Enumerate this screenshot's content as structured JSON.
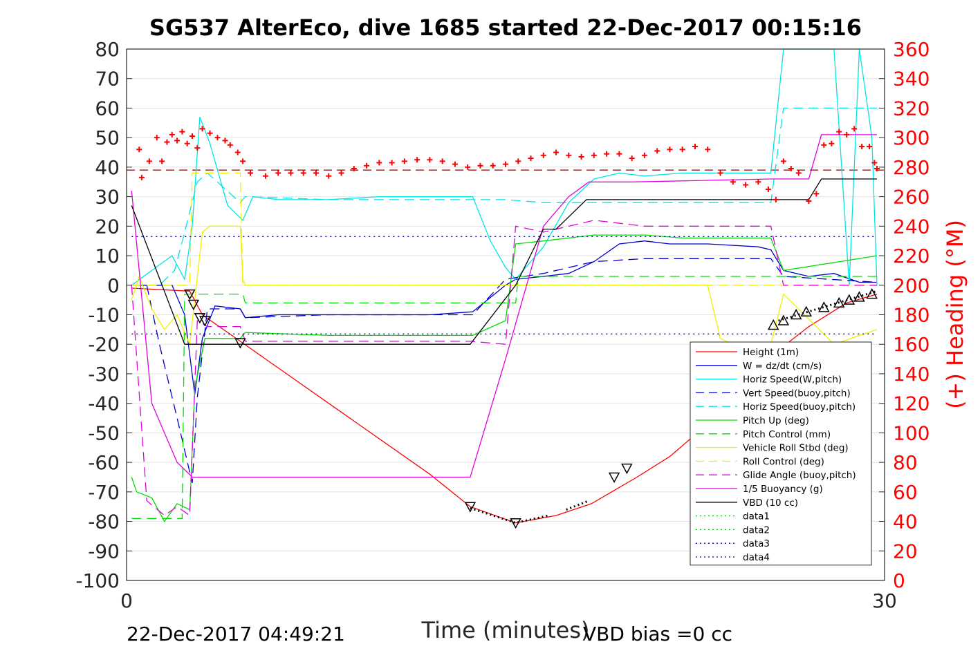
{
  "chart_data": {
    "type": "line",
    "title": "SG537 AlterEco, dive 1685 started 22-Dec-2017 00:15:16",
    "xlabel": "Time (minutes)",
    "ylabel_right": "(+) Heading (°M)",
    "xlim": [
      0,
      30
    ],
    "ylim": [
      -100,
      80
    ],
    "ylim_right": [
      0,
      360
    ],
    "grid": true,
    "legend_position": "lower-right",
    "x_ticks": [
      "0",
      "30"
    ],
    "y_ticks": [
      "80",
      "70",
      "60",
      "50",
      "40",
      "30",
      "20",
      "10",
      "0",
      "-10",
      "-20",
      "-30",
      "-40",
      "-50",
      "-60",
      "-70",
      "-80",
      "-90",
      "-100"
    ],
    "y_ticks_right": [
      "360",
      "340",
      "320",
      "300",
      "280",
      "260",
      "240",
      "220",
      "200",
      "180",
      "160",
      "140",
      "120",
      "100",
      "80",
      "60",
      "40",
      "20",
      "0"
    ],
    "footer_left": "22-Dec-2017 04:49:21",
    "footer_right": "VBD bias =0 cc",
    "colors": {
      "height": "#ff0000",
      "w": "#0000cc",
      "horiz_speed": "#00e5e5",
      "vert_speed_buoy": "#0000cc",
      "horiz_speed_buoy": "#00e5e5",
      "pitch_up": "#00dd00",
      "pitch_control": "#00dd00",
      "roll": "#f0f000",
      "roll_control": "#f0f000",
      "glide_angle": "#e000e0",
      "buoyancy": "#e000e0",
      "vbd": "#000000",
      "heading": "#ff0000",
      "data": "#00c000",
      "data_blue": "#0000aa"
    },
    "series": [
      {
        "name": "Height (1m)",
        "key": "height",
        "style": "solid",
        "x": [
          0.2,
          2.5,
          3.0,
          4.5,
          8,
          12,
          13.6,
          15.4,
          17,
          18.4,
          20.2,
          21.5,
          23,
          25.5,
          27.0,
          28.5,
          29.7
        ],
        "y": [
          -1,
          -2,
          -10,
          -19,
          -40,
          -64,
          -75,
          -80.5,
          -78,
          -74,
          -65,
          -58,
          -47,
          -24,
          -14,
          -6,
          -3
        ]
      },
      {
        "name": "W = dz/dt (cm/s)",
        "key": "w",
        "style": "solid",
        "x": [
          0.2,
          1.0,
          1.8,
          2.3,
          2.7,
          3.0,
          3.5,
          4.5,
          4.7,
          6,
          8,
          10,
          12,
          13.7,
          15,
          15.4,
          16.5,
          17.5,
          18.5,
          19.5,
          20.5,
          21.5,
          23,
          25,
          25.5,
          26,
          27,
          28,
          29,
          29.7
        ],
        "y": [
          0,
          0,
          0,
          -10,
          -37,
          -18,
          -7,
          -8,
          -11,
          -10,
          -10,
          -10,
          -10,
          -9,
          0,
          2,
          3,
          4,
          8,
          14,
          15,
          14,
          14,
          13,
          12,
          5,
          3,
          4,
          1,
          1
        ]
      },
      {
        "name": "Horiz Speed(W,pitch)",
        "key": "horiz_speed",
        "style": "solid",
        "x": [
          0.2,
          1.0,
          1.8,
          2.3,
          2.6,
          2.9,
          3.3,
          4.0,
          4.6,
          5.0,
          6,
          8,
          10,
          12,
          13.7,
          14.4,
          15.0,
          15.4,
          16.5,
          17.5,
          18.5,
          19.5,
          20.5,
          22,
          23,
          24.5,
          25.5,
          26.0,
          27.0,
          28.0,
          28.6,
          29.0,
          29.5,
          29.7
        ],
        "y": [
          0,
          5,
          10,
          2,
          20,
          57,
          48,
          27,
          22,
          30,
          29,
          29,
          30,
          30,
          30,
          15,
          6,
          2,
          13,
          28,
          36,
          38,
          37,
          38,
          38,
          38,
          38,
          80,
          80,
          80,
          0,
          80,
          50,
          0
        ]
      },
      {
        "name": "Vert Speed(buoy,pitch)",
        "key": "vert_speed_buoy",
        "style": "dash",
        "x": [
          0.2,
          0.8,
          1.3,
          2.0,
          2.6,
          2.8,
          3.2,
          4.5,
          4.7,
          8,
          12,
          13.7,
          15.0,
          16.5,
          18.5,
          20.5,
          22,
          25.5,
          26.0,
          29.7
        ],
        "y": [
          0,
          0,
          -20,
          -45,
          -67,
          -38,
          -8,
          -8,
          -11,
          -10,
          -10,
          -10,
          2,
          4,
          8,
          9,
          9,
          9,
          3,
          1
        ]
      },
      {
        "name": "Horiz Speed(buoy,pitch)",
        "key": "horiz_speed_buoy",
        "style": "dash",
        "x": [
          0.2,
          1.3,
          1.9,
          2.3,
          2.8,
          3.2,
          4.5,
          4.7,
          8,
          12,
          13.7,
          15,
          16.5,
          18,
          20,
          25.5,
          26.0,
          29.7
        ],
        "y": [
          0,
          0,
          5,
          18,
          35,
          38,
          28,
          30,
          29,
          29,
          29,
          29,
          28,
          28,
          28,
          28,
          60,
          60
        ]
      },
      {
        "name": "Pitch Up (deg)",
        "key": "pitch_up",
        "style": "solid",
        "x": [
          0.2,
          0.4,
          1.0,
          1.5,
          2.0,
          2.5,
          2.7,
          3.1,
          4.5,
          4.7,
          8,
          12,
          13.7,
          15.0,
          15.4,
          16.5,
          18.5,
          19.5,
          20.5,
          22,
          25.5,
          26.0,
          29.7
        ],
        "y": [
          -65,
          -70,
          -72,
          -80,
          -74,
          -76,
          -35,
          -18,
          -18,
          -16,
          -17,
          -17,
          -17,
          -12,
          14,
          15,
          17,
          17,
          17,
          16,
          16,
          5,
          10
        ]
      },
      {
        "name": "Pitch Control (mm)",
        "key": "pitch_control",
        "style": "dash",
        "x": [
          0.2,
          2.2,
          2.3,
          4.6,
          4.7,
          13.6,
          13.7,
          15.4,
          15.5,
          26.0,
          29.7
        ],
        "y": [
          -79,
          -79,
          -3,
          -3,
          -6,
          -6,
          -6,
          -6,
          3,
          3,
          3
        ]
      },
      {
        "name": "Vehicle Roll Stbd (deg)",
        "key": "roll",
        "style": "solid",
        "x": [
          0.2,
          0.5,
          1.0,
          1.5,
          2.0,
          2.5,
          3.0,
          3.3,
          4.5,
          4.6,
          4.7,
          8,
          12,
          13.7,
          15.0,
          16.5,
          20,
          23,
          23.5,
          24.0,
          25.5,
          26.0,
          28.0,
          29.7
        ],
        "y": [
          -5,
          3,
          -8,
          -15,
          -10,
          -20,
          18,
          20,
          20,
          2,
          0,
          0,
          0,
          0,
          0,
          0,
          0,
          0,
          -18,
          -20,
          -20,
          -3,
          -20,
          -15
        ]
      },
      {
        "name": "Roll Control (deg)",
        "key": "roll_control",
        "style": "dash",
        "x": [
          0.2,
          2.5,
          2.6,
          4.5,
          4.6,
          15.0,
          15.1,
          29.7
        ],
        "y": [
          0,
          0,
          38,
          38,
          0,
          0,
          0,
          0
        ]
      },
      {
        "name": "Glide Angle (buoy,pitch)",
        "key": "glide_angle",
        "style": "dash",
        "x": [
          0.2,
          0.8,
          1.5,
          2.0,
          2.5,
          2.8,
          3.2,
          4.5,
          4.7,
          8,
          12,
          13.6,
          15.0,
          15.4,
          16.5,
          18.5,
          20.5,
          25.5,
          26.0,
          29.7
        ],
        "y": [
          0,
          -73,
          -78,
          -75,
          -78,
          -12,
          -14,
          -14,
          -19,
          -19,
          -19,
          -19,
          -20,
          20,
          18,
          22,
          20,
          20,
          0,
          0
        ]
      },
      {
        "name": "1/5 Buoyancy (g)",
        "key": "buoyancy",
        "style": "solid",
        "x": [
          0.2,
          1.0,
          2.0,
          2.6,
          3.0,
          8,
          12,
          13.6,
          15.0,
          16.5,
          17.5,
          18.3,
          20,
          25.5,
          27.0,
          27.5,
          29.7
        ],
        "y": [
          32,
          -40,
          -60,
          -65,
          -65,
          -65,
          -65,
          -65,
          -25,
          20,
          30,
          35,
          35,
          36,
          36,
          51,
          51
        ]
      },
      {
        "name": "VBD (10 cc)",
        "key": "vbd",
        "style": "solid",
        "x": [
          0.2,
          2.3,
          4.5,
          13.6,
          15.4,
          16.5,
          17,
          18.2,
          20,
          25.5,
          27,
          27.5,
          29.7
        ],
        "y": [
          27,
          -20,
          -20,
          -20,
          0,
          19,
          19,
          29,
          29,
          29,
          29,
          36,
          36
        ]
      },
      {
        "name": "data1",
        "key": "data",
        "style": "dot",
        "x": [
          0.2,
          29.7
        ],
        "y": [
          null,
          null
        ]
      },
      {
        "name": "data2",
        "key": "data",
        "style": "dot",
        "x": [
          0.2,
          29.7
        ],
        "y": [
          null,
          null
        ]
      },
      {
        "name": "data3",
        "key": "data_blue",
        "style": "dot",
        "x": [
          0.2,
          29.7
        ],
        "y": [
          16.5,
          16.5
        ]
      },
      {
        "name": "data4",
        "key": "data_blue",
        "style": "dot",
        "x": [
          0.2,
          29.7
        ],
        "y": [
          -16.5,
          -16.5
        ]
      }
    ],
    "heading": {
      "mean": 278,
      "points": [
        [
          0.5,
          292
        ],
        [
          0.6,
          273
        ],
        [
          0.9,
          284
        ],
        [
          1.2,
          300
        ],
        [
          1.4,
          284
        ],
        [
          1.6,
          297
        ],
        [
          1.8,
          302
        ],
        [
          2.0,
          298
        ],
        [
          2.2,
          304
        ],
        [
          2.4,
          296
        ],
        [
          2.6,
          301
        ],
        [
          2.8,
          293
        ],
        [
          3.0,
          306
        ],
        [
          3.3,
          303
        ],
        [
          3.6,
          300
        ],
        [
          3.9,
          298
        ],
        [
          4.1,
          295
        ],
        [
          4.4,
          290
        ],
        [
          4.6,
          284
        ],
        [
          4.9,
          276
        ],
        [
          5.5,
          274
        ],
        [
          6,
          276
        ],
        [
          6.5,
          276
        ],
        [
          7,
          276
        ],
        [
          7.5,
          276
        ],
        [
          8,
          274
        ],
        [
          8.5,
          276
        ],
        [
          9,
          279
        ],
        [
          9.5,
          281
        ],
        [
          10,
          283
        ],
        [
          10.5,
          283
        ],
        [
          11,
          284
        ],
        [
          11.5,
          285
        ],
        [
          12,
          285
        ],
        [
          12.5,
          284
        ],
        [
          13,
          282
        ],
        [
          13.5,
          280
        ],
        [
          14,
          281
        ],
        [
          14.5,
          281
        ],
        [
          15,
          282
        ],
        [
          15.5,
          284
        ],
        [
          16,
          286
        ],
        [
          16.5,
          288
        ],
        [
          17,
          290
        ],
        [
          17.5,
          288
        ],
        [
          18,
          287
        ],
        [
          18.5,
          288
        ],
        [
          19,
          289
        ],
        [
          19.5,
          289
        ],
        [
          20,
          286
        ],
        [
          20.5,
          288
        ],
        [
          21,
          291
        ],
        [
          21.5,
          292
        ],
        [
          22,
          292
        ],
        [
          22.5,
          294
        ],
        [
          23,
          292
        ],
        [
          23.5,
          276
        ],
        [
          24,
          270
        ],
        [
          24.5,
          268
        ],
        [
          25,
          270
        ],
        [
          25.4,
          265
        ],
        [
          25.7,
          258
        ],
        [
          26,
          284
        ],
        [
          26.3,
          279
        ],
        [
          26.6,
          276
        ],
        [
          27.0,
          257
        ],
        [
          27.3,
          262
        ],
        [
          27.6,
          295
        ],
        [
          27.9,
          296
        ],
        [
          28.2,
          304
        ],
        [
          28.5,
          302
        ],
        [
          28.8,
          306
        ],
        [
          29.1,
          294
        ],
        [
          29.4,
          294
        ],
        [
          29.6,
          283
        ],
        [
          29.7,
          279
        ]
      ]
    },
    "markers": {
      "down": [
        [
          2.5,
          -3
        ],
        [
          2.65,
          -6.5
        ],
        [
          2.9,
          -11
        ],
        [
          3.1,
          -12
        ],
        [
          4.5,
          -19.5
        ],
        [
          13.6,
          -75
        ],
        [
          15.4,
          -80.5
        ],
        [
          19.3,
          -65
        ],
        [
          19.8,
          -62
        ]
      ],
      "up": [
        [
          25.6,
          -13.5
        ],
        [
          26.0,
          -12
        ],
        [
          26.5,
          -10
        ],
        [
          26.9,
          -9
        ],
        [
          27.6,
          -7.5
        ],
        [
          28.2,
          -6
        ],
        [
          28.6,
          -5
        ],
        [
          29.0,
          -4
        ],
        [
          29.5,
          -3
        ]
      ],
      "black_dots_segments": [
        [
          [
            13.6,
            -75.5
          ],
          [
            15.4,
            -80.5
          ],
          [
            16.7,
            -78
          ]
        ],
        [
          [
            17.4,
            -76
          ],
          [
            18.3,
            -73
          ]
        ],
        [
          [
            25.8,
            -12
          ],
          [
            29.7,
            -2
          ]
        ]
      ]
    },
    "legend": [
      {
        "label": "Height (1m)",
        "key": "height",
        "style": "solid"
      },
      {
        "label": "W = dz/dt (cm/s)",
        "key": "w",
        "style": "solid"
      },
      {
        "label": "Horiz Speed(W,pitch)",
        "key": "horiz_speed",
        "style": "solid"
      },
      {
        "label": "Vert Speed(buoy,pitch)",
        "key": "vert_speed_buoy",
        "style": "dash"
      },
      {
        "label": "Horiz Speed(buoy,pitch)",
        "key": "horiz_speed_buoy",
        "style": "dash"
      },
      {
        "label": "Pitch Up (deg)",
        "key": "pitch_up",
        "style": "solid"
      },
      {
        "label": "Pitch Control (mm)",
        "key": "pitch_control",
        "style": "dash"
      },
      {
        "label": "Vehicle Roll Stbd (deg)",
        "key": "roll",
        "style": "solid"
      },
      {
        "label": "Roll Control (deg)",
        "key": "roll_control",
        "style": "dash"
      },
      {
        "label": "Glide Angle (buoy,pitch)",
        "key": "glide_angle",
        "style": "dash"
      },
      {
        "label": "1/5 Buoyancy (g)",
        "key": "buoyancy",
        "style": "solid"
      },
      {
        "label": "VBD (10 cc)",
        "key": "vbd",
        "style": "solid"
      },
      {
        "label": "data1",
        "key": "data",
        "style": "dot"
      },
      {
        "label": "data2",
        "key": "data",
        "style": "dot"
      },
      {
        "label": "data3",
        "key": "data_blue",
        "style": "dot"
      },
      {
        "label": "data4",
        "key": "data_blue",
        "style": "dot"
      }
    ]
  }
}
